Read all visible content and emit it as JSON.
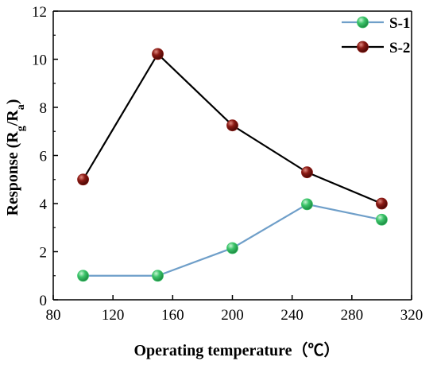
{
  "chart_data": {
    "type": "line",
    "xlabel": "Operating temperature（℃）",
    "ylabel": "Response (Rg/Ra)",
    "ylabel_parts": {
      "prefix": "Response (R",
      "sub1": "g",
      "mid": "/R",
      "sub2": "a",
      "suffix": ")"
    },
    "xlim": [
      80,
      320
    ],
    "ylim": [
      0,
      12
    ],
    "xticks": [
      80,
      120,
      160,
      200,
      240,
      280,
      320
    ],
    "yticks": [
      0,
      2,
      4,
      6,
      8,
      10,
      12
    ],
    "grid": false,
    "legend_position": "top-right",
    "series": [
      {
        "name": "S-1",
        "color": "#6f9fc9",
        "marker_color": "#3cc46a",
        "x": [
          100,
          150,
          200,
          250,
          300
        ],
        "y": [
          1.0,
          1.0,
          2.15,
          3.97,
          3.33
        ]
      },
      {
        "name": "S-2",
        "color": "#000000",
        "marker_color": "#8b1a14",
        "x": [
          100,
          150,
          200,
          250,
          300
        ],
        "y": [
          5.0,
          10.22,
          7.25,
          5.3,
          4.0
        ]
      }
    ]
  }
}
